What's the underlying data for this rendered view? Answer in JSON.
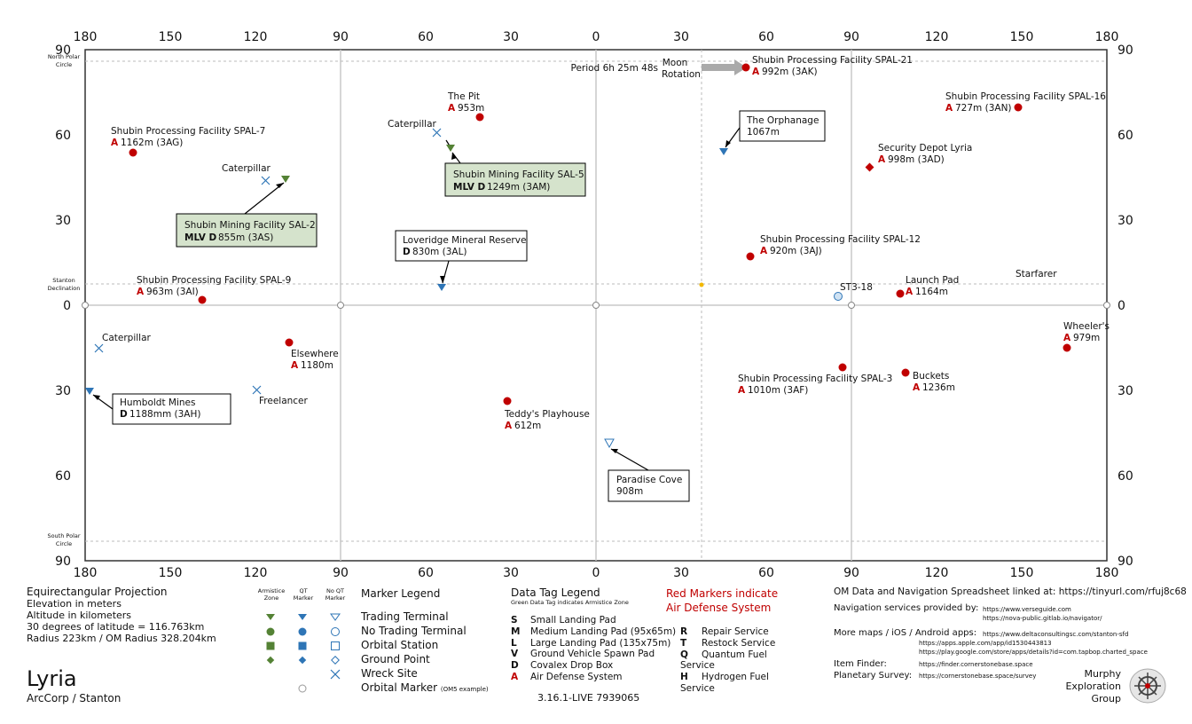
{
  "axis": {
    "top_ticks": [
      "180",
      "150",
      "120",
      "90",
      "60",
      "30",
      "0",
      "30",
      "60",
      "90",
      "120",
      "150",
      "180"
    ],
    "bottom_ticks": [
      "180",
      "150",
      "120",
      "90",
      "60",
      "30",
      "0",
      "30",
      "60",
      "90",
      "120",
      "150",
      "180"
    ],
    "left_ticks": [
      "90",
      "60",
      "30",
      "0",
      "30",
      "60",
      "90"
    ],
    "right_ticks": [
      "90",
      "60",
      "30",
      "0",
      "30",
      "60",
      "90"
    ],
    "north_polar": [
      "North Polar",
      "Circle"
    ],
    "south_polar": [
      "South Polar",
      "Circle"
    ],
    "stanton_decl": [
      "Stanton",
      "Declination"
    ]
  },
  "rotation": {
    "period": "Period 6h 25m 48s",
    "moon": "Moon",
    "label": "Rotation"
  },
  "locations": [
    {
      "name": "Shubin Processing Facility SPAL-21",
      "tag": "A",
      "info": "992m (3AK)",
      "lon": 53,
      "lat": 84,
      "type": "red-circle"
    },
    {
      "name": "Shubin Processing Facility SPAL-16",
      "tag": "A",
      "info": "727m (3AN)",
      "lon": 149,
      "lat": 70,
      "type": "red-circle"
    },
    {
      "name": "The Pit",
      "tag": "A",
      "info": "953m",
      "lon": -41,
      "lat": 66,
      "type": "red-circle"
    },
    {
      "name": "Shubin Processing Facility SPAL-7",
      "tag": "A",
      "info": "1162m (3AG)",
      "lon": -166,
      "lat": 54,
      "type": "red-circle"
    },
    {
      "name": "Security Depot Lyria",
      "tag": "A",
      "info": "998m (3AD)",
      "lon": 97,
      "lat": 48,
      "type": "red-diamond"
    },
    {
      "name": "Shubin Processing Facility SPAL-12",
      "tag": "A",
      "info": "920m (3AJ)",
      "lon": 54,
      "lat": 17,
      "type": "red-circle"
    },
    {
      "name": "Shubin Processing Facility SPAL-9",
      "tag": "A",
      "info": "963m (3AI)",
      "lon": -139,
      "lat": 2,
      "type": "red-circle"
    },
    {
      "name": "Launch Pad",
      "tag": "A",
      "info": "1164m",
      "lon": 108,
      "lat": 4,
      "type": "red-circle"
    },
    {
      "name": "Wheeler's",
      "tag": "A",
      "info": "979m",
      "lon": 166,
      "lat": -15,
      "type": "red-circle"
    },
    {
      "name": "Elsewhere",
      "tag": "A",
      "info": "1180m",
      "lon": -108,
      "lat": -13,
      "type": "red-circle"
    },
    {
      "name": "Shubin Processing Facility SPAL-3",
      "tag": "A",
      "info": "1010m (3AF)",
      "lon": 87,
      "lat": -22,
      "type": "red-circle"
    },
    {
      "name": "Buckets",
      "tag": "A",
      "info": "1236m",
      "lon": 110,
      "lat": -24,
      "type": "red-circle"
    },
    {
      "name": "Teddy's Playhouse",
      "tag": "A",
      "info": "612m",
      "lon": -31,
      "lat": -34,
      "type": "red-circle"
    }
  ],
  "boxes": [
    {
      "name": "Shubin Mining Facility SAL-5",
      "tag": "MLV D",
      "info": "1249m (3AM)",
      "green": true
    },
    {
      "name": "Shubin Mining Facility SAL-2",
      "tag": "MLV D",
      "info": "855m (3AS)",
      "green": true
    },
    {
      "name": "The Orphanage",
      "tag": "",
      "info": "1067m",
      "green": false
    },
    {
      "name": "Loveridge Mineral Reserve",
      "tag": "D",
      "info": "830m (3AL)",
      "green": false
    },
    {
      "name": "Humboldt Mines",
      "tag": "D",
      "info": "1188mm (3AH)",
      "green": false
    },
    {
      "name": "Paradise Cove",
      "tag": "",
      "info": "908m",
      "green": false
    }
  ],
  "wrecks": [
    "Caterpillar",
    "Caterpillar",
    "Caterpillar",
    "Freelancer"
  ],
  "others": {
    "starfarer": "Starfarer",
    "om": "ST3-18"
  },
  "projection": {
    "title": "Equirectangular  Projection",
    "lines": [
      "Elevation in meters",
      "Altitude in kilometers",
      "30 degrees of latitude = 116.763km",
      "Radius 223km / OM Radius 328.204km"
    ]
  },
  "place": {
    "name": "Lyria",
    "sub": "ArcCorp / Stanton"
  },
  "marker_legend": {
    "col_headers": [
      [
        "Armistice",
        "Zone"
      ],
      [
        "QT",
        "Marker"
      ],
      [
        "No QT",
        "Marker"
      ]
    ],
    "title": "Marker Legend",
    "rows": [
      "Trading Terminal",
      "No Trading Terminal",
      "Orbital Station",
      "Ground Point",
      "Wreck Site",
      "Orbital Marker"
    ],
    "om_note": "(OM5 example)"
  },
  "data_tag_legend": {
    "title": "Data Tag Legend",
    "subtitle": "Green Data Tag indicates Armistice Zone",
    "left": [
      [
        "S",
        "Small Landing Pad"
      ],
      [
        "M",
        "Medium Landing Pad (95x65m)"
      ],
      [
        "L",
        "Large Landing Pad (135x75m)"
      ],
      [
        "V",
        "Ground Vehicle Spawn Pad"
      ],
      [
        "D",
        "Covalex Drop Box"
      ],
      [
        "A",
        "Air Defense System"
      ]
    ],
    "right": [
      [
        "R",
        "Repair Service"
      ],
      [
        "T",
        "Restock Service"
      ],
      [
        "Q",
        "Quantum Fuel Service"
      ],
      [
        "H",
        "Hydrogen Fuel Service"
      ]
    ]
  },
  "red_note": [
    "Red Markers indicate",
    "Air Defense System"
  ],
  "version": "3.16.1-LIVE 7939065",
  "links": {
    "om": "OM Data and Navigation Spreadsheet linked at: https://tinyurl.com/rfuj8c68",
    "nav_label": "Navigation services provided by:",
    "nav_urls": [
      "https://www.verseguide.com",
      "https://nova-public.gitlab.io/navigator/"
    ],
    "maps_label": "More maps / iOS / Android apps:",
    "maps_urls": [
      "https://www.deltaconsultingsc.com/stanton-sfd",
      "https://apps.apple.com/app/id1530443813",
      "https://play.google.com/store/apps/details?id=com.tapbop.charted_space"
    ],
    "item_label": "Item Finder:",
    "item_url": "https://finder.cornerstonebase.space",
    "survey_label": "Planetary Survey:",
    "survey_url": "https://cornerstonebase.space/survey"
  },
  "group": [
    "Murphy",
    "Exploration",
    "Group"
  ],
  "colors": {
    "air_defense": "#c00000",
    "marker_blue": "#2e75b6",
    "marker_green": "#548235",
    "tag_green": "#d5e3cc"
  }
}
